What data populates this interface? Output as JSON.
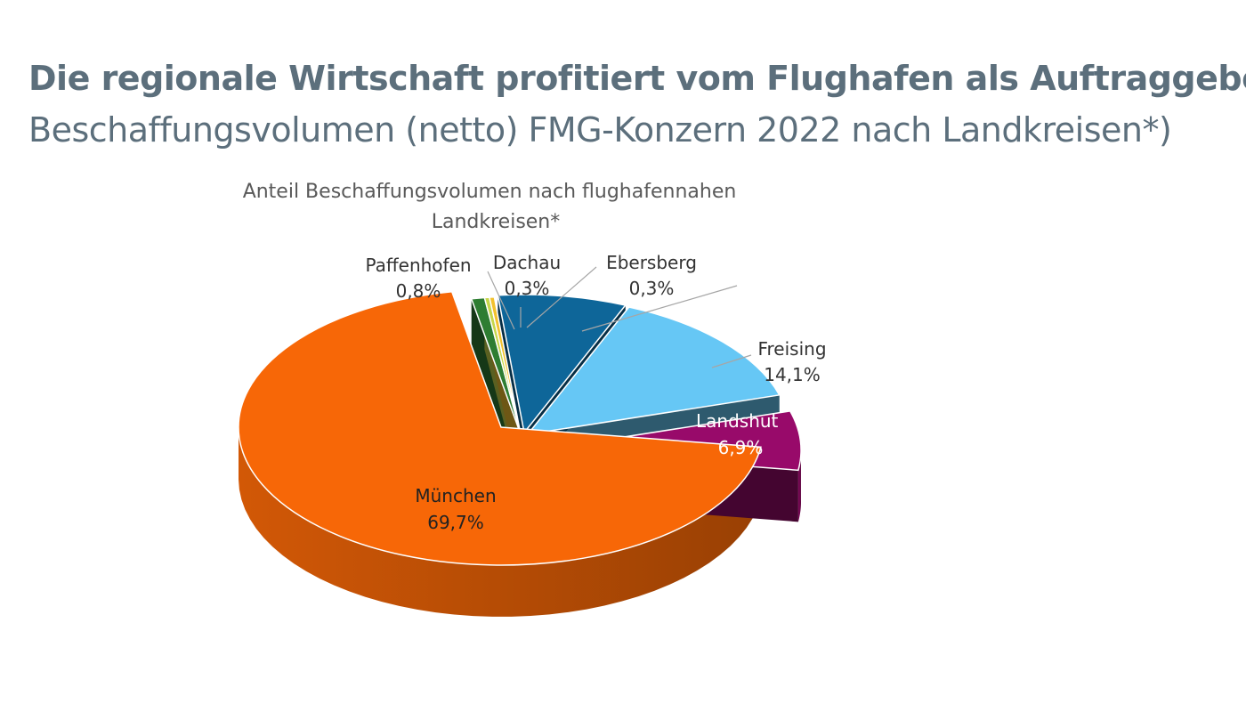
{
  "header": {
    "title": "Die regionale Wirtschaft profitiert vom Flughafen als Auftraggeber",
    "subtitle": "Beschaffungsvolumen (netto) FMG-Konzern 2022 nach Landkreisen*)"
  },
  "chart_data": {
    "type": "pie",
    "title_lines": [
      "Anteil Beschaffungsvolumen nach flughafennahen",
      "Landkreisen*"
    ],
    "slices": [
      {
        "key": "paffenhofen",
        "name": "Paffenhofen",
        "value": 0.8,
        "label": "0,8%",
        "color": "#2e7d32"
      },
      {
        "key": "dachau",
        "name": "Dachau",
        "value": 0.3,
        "label": "0,3%",
        "color": "#c7d64a"
      },
      {
        "key": "ebersberg",
        "name": "Ebersberg",
        "value": 0.3,
        "label": "0,3%",
        "color": "#f2c12e"
      },
      {
        "key": "unlabeled",
        "name": "",
        "value": 7.9,
        "label": "",
        "color": "#0e6699"
      },
      {
        "key": "freising",
        "name": "Freising",
        "value": 14.1,
        "label": "14,1%",
        "color": "#66c7f5"
      },
      {
        "key": "landshut",
        "name": "Landshut",
        "value": 6.9,
        "label": "6,9%",
        "color": "#980a6a"
      },
      {
        "key": "muenchen",
        "name": "München",
        "value": 69.7,
        "label": "69,7%",
        "color": "#f76707"
      }
    ]
  }
}
